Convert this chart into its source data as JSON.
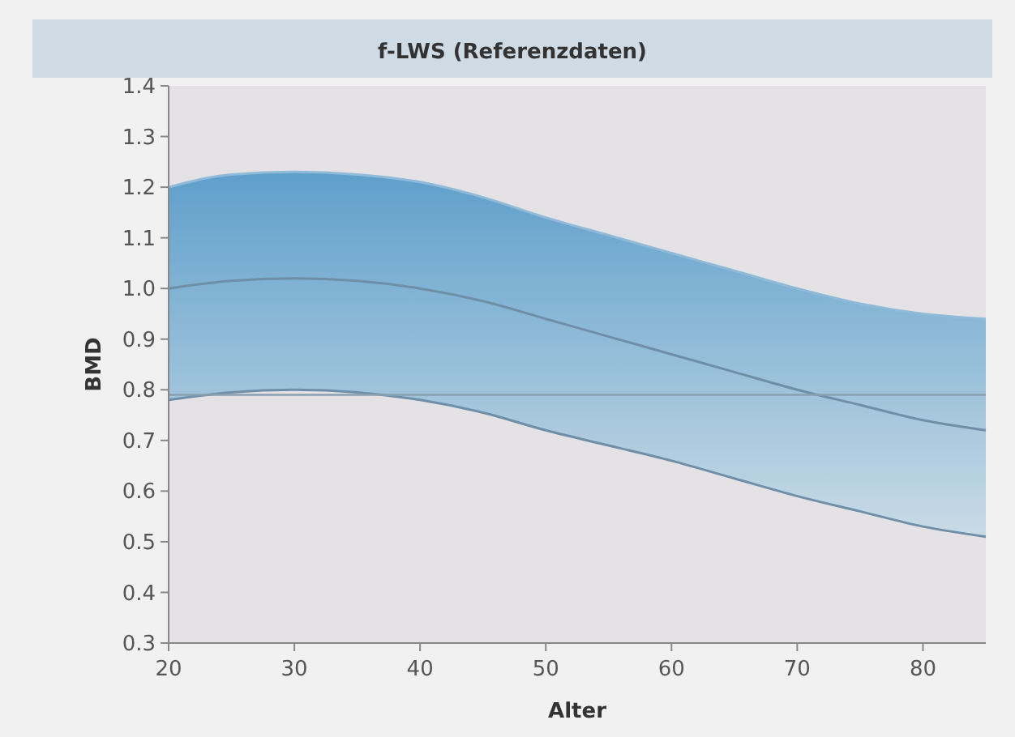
{
  "chart_data": {
    "type": "line",
    "title": "f-LWS (Referenzdaten)",
    "xlabel": "Alter",
    "ylabel": "BMD",
    "x": [
      20,
      25,
      30,
      35,
      40,
      45,
      50,
      55,
      60,
      65,
      70,
      75,
      80,
      85
    ],
    "series": [
      {
        "color": "#6f8fa9",
        "values": [
          1.0,
          1.015,
          1.02,
          1.015,
          1.0,
          0.975,
          0.94,
          0.905,
          0.87,
          0.835,
          0.8,
          0.77,
          0.74,
          0.72
        ],
        "lower": [
          0.78,
          0.795,
          0.8,
          0.795,
          0.78,
          0.755,
          0.72,
          0.69,
          0.66,
          0.625,
          0.59,
          0.56,
          0.53,
          0.51
        ],
        "upper": [
          1.2,
          1.225,
          1.23,
          1.225,
          1.21,
          1.18,
          1.14,
          1.105,
          1.07,
          1.035,
          1.0,
          0.97,
          0.95,
          0.94
        ]
      },
      {
        "color": "#8fbbd8",
        "values": [
          1.2,
          1.225,
          1.23,
          1.225,
          1.21,
          1.18,
          1.14,
          1.105,
          1.07,
          1.035,
          1.0,
          0.97,
          0.95,
          0.94
        ]
      },
      {
        "color": "#6f8fa9",
        "values": [
          0.78,
          0.795,
          0.8,
          0.795,
          0.78,
          0.755,
          0.72,
          0.69,
          0.66,
          0.625,
          0.59,
          0.56,
          0.53,
          0.51
        ]
      }
    ],
    "xlim": [
      20,
      85
    ],
    "xticks": [
      20,
      30,
      40,
      50,
      60,
      70,
      80
    ],
    "ylim": [
      0.3,
      1.4
    ],
    "yticks": [
      0.3,
      0.4,
      0.5,
      0.6,
      0.7,
      0.8,
      0.9,
      {
        "value": 1,
        "label": "1.0"
      },
      1.1,
      1.2,
      1.3,
      1.4
    ],
    "ref_lines": [
      {
        "axis": "y",
        "value": 0.79,
        "color": "#8a9fb0"
      }
    ],
    "marker": "none",
    "line_style": "solid",
    "grid": false
  }
}
